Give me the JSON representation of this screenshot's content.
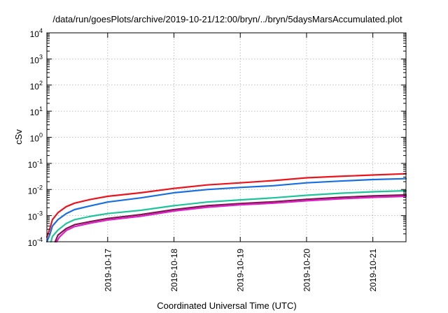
{
  "chart_data": {
    "type": "line",
    "title": "/data/run/goesPlots/archive/2019-10-21/12:00/bryn/../bryn/5daysMarsAccumulated.plot",
    "xlabel": "Coordinated Universal Time (UTC)",
    "ylabel": "cSv",
    "y_scale": "log",
    "ylim": [
      0.0001,
      10000
    ],
    "xlim": [
      "2019-10-16T02:00",
      "2019-10-21T12:00"
    ],
    "grid": true,
    "y_ticks": [
      {
        "value": 0.0001,
        "base": "10",
        "exp": "-4"
      },
      {
        "value": 0.001,
        "base": "10",
        "exp": "-3"
      },
      {
        "value": 0.01,
        "base": "10",
        "exp": "-2"
      },
      {
        "value": 0.1,
        "base": "10",
        "exp": "-1"
      },
      {
        "value": 1,
        "base": "10",
        "exp": "0"
      },
      {
        "value": 10,
        "base": "10",
        "exp": "1"
      },
      {
        "value": 100,
        "base": "10",
        "exp": "2"
      },
      {
        "value": 1000,
        "base": "10",
        "exp": "3"
      },
      {
        "value": 10000,
        "base": "10",
        "exp": "4"
      }
    ],
    "x_ticks": [
      "2019-10-17",
      "2019-10-18",
      "2019-10-19",
      "2019-10-20",
      "2019-10-21"
    ],
    "series": [
      {
        "color": "#e8141e",
        "x": [
          "2019-10-16T02:00",
          "2019-10-16T03:00",
          "2019-10-16T04:00",
          "2019-10-16T06:00",
          "2019-10-16T09:00",
          "2019-10-16T12:00",
          "2019-10-16T18:00",
          "2019-10-17T00:00",
          "2019-10-17T12:00",
          "2019-10-18T00:00",
          "2019-10-18T12:00",
          "2019-10-19T00:00",
          "2019-10-19T12:00",
          "2019-10-20T00:00",
          "2019-10-20T12:00",
          "2019-10-21T00:00",
          "2019-10-21T12:00"
        ],
        "y": [
          0.00015,
          0.0003,
          0.0007,
          0.0013,
          0.0022,
          0.003,
          0.0042,
          0.0055,
          0.0075,
          0.011,
          0.015,
          0.018,
          0.022,
          0.028,
          0.032,
          0.036,
          0.04
        ]
      },
      {
        "color": "#1a6fe0",
        "x": [
          "2019-10-16T02:00",
          "2019-10-16T03:00",
          "2019-10-16T04:00",
          "2019-10-16T06:00",
          "2019-10-16T09:00",
          "2019-10-16T12:00",
          "2019-10-16T18:00",
          "2019-10-17T00:00",
          "2019-10-17T12:00",
          "2019-10-18T00:00",
          "2019-10-18T12:00",
          "2019-10-19T00:00",
          "2019-10-19T12:00",
          "2019-10-20T00:00",
          "2019-10-20T12:00",
          "2019-10-21T00:00",
          "2019-10-21T12:00"
        ],
        "y": [
          0.0001,
          0.00018,
          0.0004,
          0.0007,
          0.0012,
          0.0017,
          0.0024,
          0.0033,
          0.0048,
          0.0075,
          0.01,
          0.012,
          0.014,
          0.018,
          0.021,
          0.024,
          0.026
        ]
      },
      {
        "color": "#1fc49a",
        "x": [
          "2019-10-16T03:30",
          "2019-10-16T04:00",
          "2019-10-16T06:00",
          "2019-10-16T09:00",
          "2019-10-16T12:00",
          "2019-10-16T18:00",
          "2019-10-17T00:00",
          "2019-10-17T12:00",
          "2019-10-18T00:00",
          "2019-10-18T12:00",
          "2019-10-19T00:00",
          "2019-10-19T12:00",
          "2019-10-20T00:00",
          "2019-10-20T12:00",
          "2019-10-21T00:00",
          "2019-10-21T12:00"
        ],
        "y": [
          0.0001,
          0.00016,
          0.00028,
          0.0005,
          0.0007,
          0.00095,
          0.0012,
          0.0016,
          0.0024,
          0.0033,
          0.004,
          0.0048,
          0.006,
          0.0072,
          0.0082,
          0.009
        ]
      },
      {
        "color": "#7a1a4a",
        "x": [
          "2019-10-16T05:00",
          "2019-10-16T06:00",
          "2019-10-16T09:00",
          "2019-10-16T12:00",
          "2019-10-16T18:00",
          "2019-10-17T00:00",
          "2019-10-17T12:00",
          "2019-10-18T00:00",
          "2019-10-18T12:00",
          "2019-10-19T00:00",
          "2019-10-19T12:00",
          "2019-10-20T00:00",
          "2019-10-20T12:00",
          "2019-10-21T00:00",
          "2019-10-21T12:00"
        ],
        "y": [
          0.0001,
          0.00018,
          0.00032,
          0.00045,
          0.0006,
          0.00078,
          0.0011,
          0.0017,
          0.0024,
          0.0029,
          0.0034,
          0.0042,
          0.005,
          0.0057,
          0.0062
        ]
      },
      {
        "color": "#e020c8",
        "x": [
          "2019-10-16T05:30",
          "2019-10-16T06:30",
          "2019-10-16T09:00",
          "2019-10-16T12:00",
          "2019-10-16T18:00",
          "2019-10-17T00:00",
          "2019-10-17T12:00",
          "2019-10-18T00:00",
          "2019-10-18T12:00",
          "2019-10-19T00:00",
          "2019-10-19T12:00",
          "2019-10-20T00:00",
          "2019-10-20T12:00",
          "2019-10-21T00:00",
          "2019-10-21T12:00"
        ],
        "y": [
          0.0001,
          0.00015,
          0.00027,
          0.00038,
          0.00052,
          0.00068,
          0.00095,
          0.0015,
          0.0021,
          0.0026,
          0.003,
          0.0037,
          0.0044,
          0.005,
          0.0055
        ]
      }
    ]
  }
}
